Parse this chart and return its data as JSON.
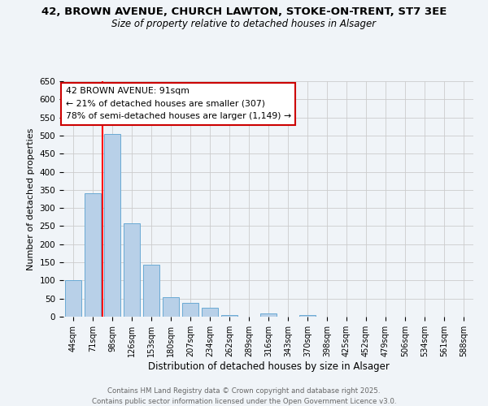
{
  "title": "42, BROWN AVENUE, CHURCH LAWTON, STOKE-ON-TRENT, ST7 3EE",
  "subtitle": "Size of property relative to detached houses in Alsager",
  "xlabel": "Distribution of detached houses by size in Alsager",
  "ylabel": "Number of detached properties",
  "bar_color": "#b8d0e8",
  "bar_edge_color": "#6aaad4",
  "background_color": "#f0f4f8",
  "plot_bg_color": "#f0f4f8",
  "grid_color": "#cccccc",
  "categories": [
    "44sqm",
    "71sqm",
    "98sqm",
    "126sqm",
    "153sqm",
    "180sqm",
    "207sqm",
    "234sqm",
    "262sqm",
    "289sqm",
    "316sqm",
    "343sqm",
    "370sqm",
    "398sqm",
    "425sqm",
    "452sqm",
    "479sqm",
    "506sqm",
    "534sqm",
    "561sqm",
    "588sqm"
  ],
  "values": [
    100,
    340,
    505,
    258,
    143,
    53,
    38,
    24,
    5,
    0,
    9,
    0,
    5,
    0,
    0,
    0,
    0,
    0,
    0,
    0,
    0
  ],
  "ylim": [
    0,
    650
  ],
  "yticks": [
    0,
    50,
    100,
    150,
    200,
    250,
    300,
    350,
    400,
    450,
    500,
    550,
    600,
    650
  ],
  "annotation_line1": "42 BROWN AVENUE: 91sqm",
  "annotation_line2": "← 21% of detached houses are smaller (307)",
  "annotation_line3": "78% of semi-detached houses are larger (1,149) →",
  "annotation_box_color": "#ffffff",
  "annotation_box_edge": "#cc0000",
  "footer_line1": "Contains HM Land Registry data © Crown copyright and database right 2025.",
  "footer_line2": "Contains public sector information licensed under the Open Government Licence v3.0."
}
